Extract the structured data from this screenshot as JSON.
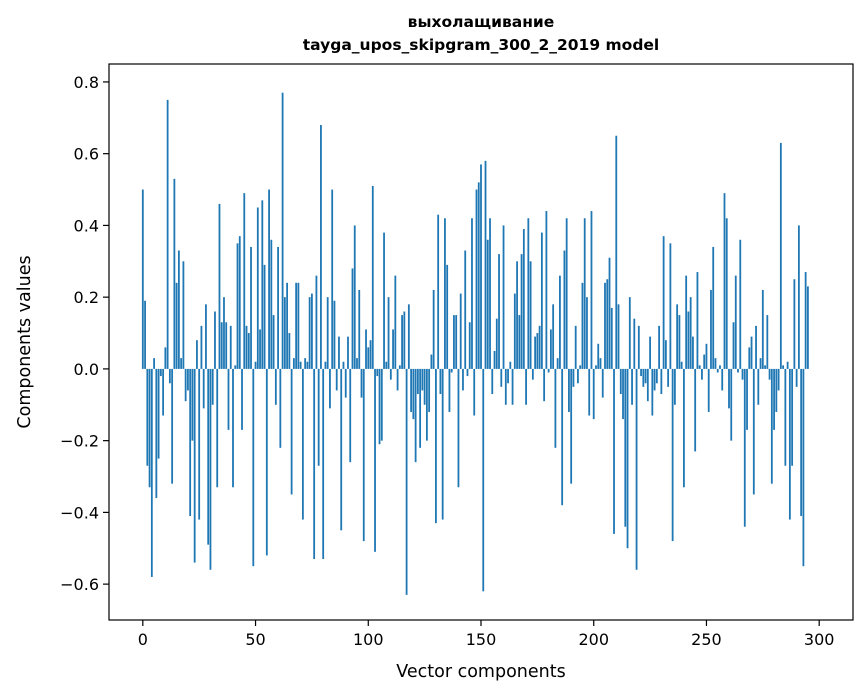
{
  "chart_data": {
    "type": "bar",
    "title": "выхолащивание",
    "subtitle": "tayga_upos_skipgram_300_2_2019 model",
    "xlabel": "Vector components",
    "ylabel": "Components values",
    "xlim": [
      -15,
      315
    ],
    "ylim": [
      -0.7,
      0.85
    ],
    "xticks": [
      0,
      50,
      100,
      150,
      200,
      250,
      300
    ],
    "xtick_labels": [
      "0",
      "50",
      "100",
      "150",
      "200",
      "250",
      "300"
    ],
    "yticks": [
      -0.6,
      -0.4,
      -0.2,
      0.0,
      0.2,
      0.4,
      0.6,
      0.8
    ],
    "ytick_labels": [
      "−0.6",
      "−0.4",
      "−0.2",
      "0.0",
      "0.2",
      "0.4",
      "0.6",
      "0.8"
    ],
    "bar_color": "#1f77b4",
    "grid": false,
    "x": "0..299 (component index)",
    "values": [
      0.5,
      0.19,
      -0.27,
      -0.33,
      -0.58,
      0.03,
      -0.36,
      -0.25,
      -0.02,
      -0.13,
      0.06,
      0.75,
      -0.04,
      -0.32,
      0.53,
      0.24,
      0.33,
      0.03,
      0.3,
      -0.09,
      -0.06,
      -0.41,
      -0.2,
      -0.54,
      0.08,
      -0.42,
      0.12,
      -0.11,
      0.18,
      -0.49,
      -0.56,
      -0.1,
      0.16,
      -0.33,
      0.46,
      0.13,
      0.2,
      0.13,
      -0.17,
      0.12,
      -0.33,
      0.01,
      0.35,
      0.37,
      -0.17,
      0.49,
      0.12,
      0.1,
      0.34,
      -0.55,
      0.02,
      0.45,
      0.11,
      0.47,
      0.29,
      -0.52,
      0.5,
      0.36,
      0.15,
      -0.1,
      0.34,
      -0.22,
      0.77,
      0.2,
      0.24,
      0.1,
      -0.35,
      0.03,
      0.24,
      0.24,
      0.02,
      -0.42,
      0.03,
      0.02,
      0.2,
      0.21,
      -0.53,
      0.26,
      -0.27,
      0.68,
      -0.53,
      0.02,
      0.2,
      -0.11,
      0.5,
      0.19,
      -0.06,
      0.09,
      -0.45,
      0.02,
      -0.08,
      0.09,
      -0.26,
      0.28,
      0.4,
      0.03,
      0.22,
      -0.08,
      -0.48,
      0.11,
      0.06,
      0.08,
      0.51,
      -0.51,
      -0.02,
      -0.21,
      -0.2,
      0.38,
      0.02,
      0.2,
      -0.03,
      0.11,
      0.26,
      -0.06,
      0.01,
      0.15,
      0.16,
      -0.63,
      0.18,
      -0.12,
      -0.14,
      -0.26,
      -0.07,
      -0.22,
      -0.06,
      -0.1,
      -0.2,
      -0.12,
      0.04,
      0.22,
      -0.43,
      0.43,
      -0.07,
      -0.42,
      0.42,
      0.29,
      -0.12,
      -0.01,
      0.15,
      0.15,
      -0.33,
      0.21,
      -0.06,
      0.33,
      -0.02,
      0.13,
      0.42,
      -0.13,
      0.5,
      0.52,
      0.57,
      -0.62,
      0.58,
      0.36,
      0.42,
      -0.07,
      0.05,
      0.14,
      0.32,
      -0.05,
      0.4,
      -0.1,
      -0.04,
      0.02,
      -0.1,
      0.21,
      0.3,
      0.15,
      0.32,
      0.39,
      -0.1,
      0.42,
      0.3,
      -0.03,
      0.09,
      0.1,
      0.12,
      0.38,
      -0.09,
      0.44,
      -0.01,
      0.11,
      0.18,
      -0.22,
      0.03,
      0.26,
      -0.38,
      0.33,
      0.42,
      -0.12,
      -0.32,
      -0.05,
      0.12,
      -0.04,
      0.01,
      0.24,
      0.42,
      0.2,
      -0.13,
      0.44,
      -0.14,
      0.01,
      0.07,
      0.03,
      -0.08,
      0.24,
      0.25,
      0.31,
      0.17,
      -0.46,
      0.65,
      0.18,
      -0.07,
      -0.14,
      -0.44,
      -0.5,
      0.2,
      -0.1,
      0.14,
      -0.56,
      0.12,
      -0.02,
      -0.05,
      -0.04,
      -0.09,
      0.09,
      -0.13,
      -0.06,
      -0.04,
      0.12,
      -0.07,
      0.37,
      0.08,
      -0.05,
      0.35,
      -0.48,
      -0.1,
      0.18,
      0.15,
      0.02,
      -0.33,
      0.26,
      0.16,
      0.2,
      0.09,
      -0.23,
      0.27,
      0.01,
      -0.03,
      0.04,
      0.07,
      -0.12,
      0.22,
      0.34,
      0.03,
      -0.01,
      0.01,
      -0.06,
      0.49,
      0.42,
      -0.11,
      -0.2,
      0.13,
      0.26,
      -0.01,
      0.36,
      -0.03,
      -0.44,
      -0.17,
      0.06,
      0.09,
      -0.35,
      0.12,
      -0.1,
      0.03,
      0.22,
      0.01,
      0.15,
      -0.03,
      -0.32,
      -0.17,
      -0.12,
      -0.06,
      0.63,
      0.01,
      -0.27,
      0.02,
      -0.42,
      -0.27,
      0.25,
      -0.05,
      0.4,
      -0.41,
      -0.55,
      0.27,
      0.23
    ]
  }
}
